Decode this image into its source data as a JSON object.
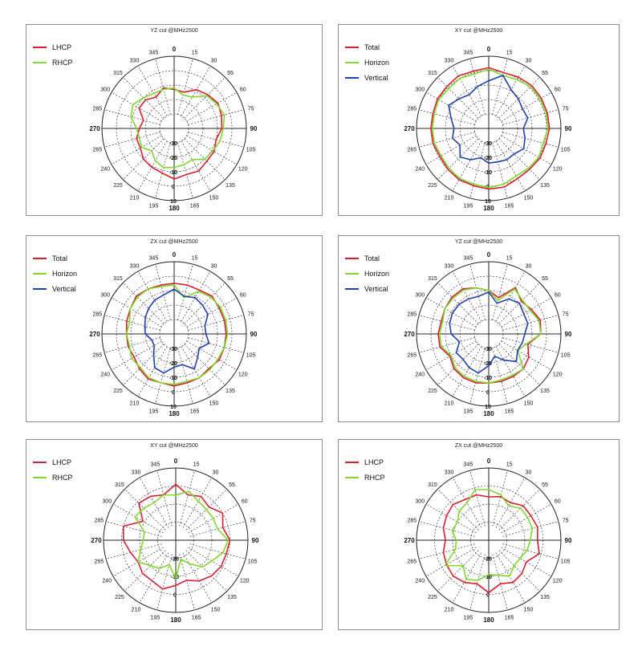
{
  "colors": {
    "red": "#d81e2f",
    "green": "#7fd92a",
    "blue": "#1f3fae"
  },
  "chart_data": [
    {
      "type": "polar",
      "title": "YZ cut @MHz2500",
      "theta_labels": [
        "0",
        "15",
        "30",
        "55",
        "60",
        "75",
        "90",
        "105",
        "120",
        "135",
        "150",
        "165",
        "180",
        "195",
        "210",
        "225",
        "240",
        "265",
        "270",
        "285",
        "300",
        "315",
        "330",
        "345"
      ],
      "r_labels": [
        "-30",
        "-20",
        "-10",
        "0",
        "10"
      ],
      "rlim": [
        -40,
        10
      ],
      "series": [
        {
          "name": "LHCP",
          "color": "red",
          "values": [
            -13,
            -14,
            -9,
            -7,
            -5,
            -6,
            -7,
            -10,
            -8,
            -8,
            -6,
            -7,
            -5,
            -8,
            -9,
            -10,
            -13,
            -13,
            -16,
            -18,
            -12,
            -12,
            -15,
            -11
          ]
        },
        {
          "name": "RHCP",
          "color": "green",
          "values": [
            -12,
            -16,
            -15,
            -8,
            -6,
            -4,
            -6,
            -7,
            -9,
            -10,
            -15,
            -14,
            -13,
            -12,
            -14,
            -18,
            -14,
            -15,
            -14,
            -9,
            -7,
            -10,
            -12,
            -12
          ]
        }
      ]
    },
    {
      "type": "polar",
      "title": "XY cut @MHz2500",
      "theta_labels": [
        "0",
        "15",
        "30",
        "55",
        "60",
        "75",
        "90",
        "105",
        "120",
        "135",
        "150",
        "165",
        "180",
        "195",
        "210",
        "225",
        "240",
        "265",
        "270",
        "285",
        "300",
        "315",
        "330",
        "345"
      ],
      "r_labels": [
        "-30",
        "-20",
        "-10",
        "0",
        "10"
      ],
      "rlim": [
        -40,
        10
      ],
      "series": [
        {
          "name": "Total",
          "color": "red",
          "values": [
            2,
            0,
            1,
            2,
            2,
            2,
            2,
            1,
            1,
            0,
            0,
            2,
            2,
            1,
            1,
            0,
            -1,
            0,
            0,
            0,
            1,
            1,
            2,
            1
          ]
        },
        {
          "name": "Horizon",
          "color": "green",
          "values": [
            1,
            -2,
            -1,
            1,
            1,
            1,
            1,
            -1,
            0,
            -1,
            -2,
            0,
            1,
            0,
            0,
            -1,
            -2,
            -1,
            -1,
            -1,
            0,
            -1,
            0,
            -1
          ]
        },
        {
          "name": "Vertical",
          "color": "blue",
          "values": [
            -7,
            -2,
            -9,
            -11,
            -13,
            -12,
            -16,
            -14,
            -12,
            -15,
            -15,
            -16,
            -16,
            -19,
            -15,
            -12,
            -17,
            -14,
            -16,
            -13,
            -8,
            -11,
            -13,
            -10
          ]
        }
      ]
    },
    {
      "type": "polar",
      "title": "ZX cut @MHz2500",
      "theta_labels": [
        "0",
        "15",
        "30",
        "55",
        "60",
        "75",
        "90",
        "105",
        "120",
        "135",
        "150",
        "165",
        "180",
        "195",
        "210",
        "225",
        "240",
        "265",
        "270",
        "285",
        "300",
        "315",
        "330",
        "345"
      ],
      "r_labels": [
        "-30",
        "-20",
        "-10",
        "0",
        "10"
      ],
      "rlim": [
        -40,
        10
      ],
      "series": [
        {
          "name": "Total",
          "color": "red",
          "values": [
            -5,
            -5,
            -5,
            -3,
            -4,
            -4,
            -4,
            -4,
            -4,
            -6,
            -5,
            -5,
            -4,
            -5,
            -4,
            -6,
            -8,
            -7,
            -7,
            -6,
            -5,
            -3,
            -4,
            -5
          ]
        },
        {
          "name": "Horizon",
          "color": "green",
          "values": [
            -6,
            -14,
            -6,
            -4,
            -3,
            -3,
            -3,
            -4,
            -5,
            -5,
            -5,
            -6,
            -5,
            -5,
            -5,
            -7,
            -6,
            -8,
            -7,
            -8,
            -5,
            -4,
            -4,
            -6
          ]
        },
        {
          "name": "Vertical",
          "color": "blue",
          "values": [
            -9,
            -13,
            -11,
            -12,
            -13,
            -18,
            -18,
            -15,
            -20,
            -17,
            -12,
            -18,
            -17,
            -12,
            -13,
            -20,
            -24,
            -24,
            -20,
            -19,
            -17,
            -15,
            -13,
            -12
          ]
        }
      ]
    },
    {
      "type": "polar",
      "title": "YZ cut @MHz2500",
      "theta_labels": [
        "0",
        "15",
        "30",
        "55",
        "60",
        "75",
        "90",
        "105",
        "120",
        "135",
        "150",
        "165",
        "180",
        "195",
        "210",
        "225",
        "240",
        "265",
        "270",
        "285",
        "300",
        "315",
        "330",
        "345"
      ],
      "r_labels": [
        "-30",
        "-20",
        "-10",
        "0",
        "10"
      ],
      "rlim": [
        -40,
        10
      ],
      "series": [
        {
          "name": "Total",
          "color": "red",
          "values": [
            -10,
            -14,
            -3,
            -8,
            -6,
            -3,
            -4,
            -12,
            -8,
            -6,
            -6,
            -6,
            -6,
            -5,
            -5,
            -6,
            -9,
            -5,
            -5,
            -6,
            -5,
            -4,
            -4,
            -7
          ]
        },
        {
          "name": "Horizon",
          "color": "green",
          "values": [
            -10,
            -16,
            -4,
            -7,
            -7,
            -4,
            -4,
            -13,
            -17,
            -6,
            -7,
            -7,
            -6,
            -6,
            -6,
            -7,
            -10,
            -6,
            -6,
            -7,
            -5,
            -5,
            -5,
            -7
          ]
        },
        {
          "name": "Vertical",
          "color": "blue",
          "values": [
            -11,
            -18,
            -12,
            -10,
            -12,
            -12,
            -15,
            -16,
            -17,
            -13,
            -19,
            -24,
            -18,
            -12,
            -13,
            -15,
            -14,
            -19,
            -14,
            -12,
            -11,
            -11,
            -12,
            -13
          ]
        }
      ]
    },
    {
      "type": "polar",
      "title": "XY cut @MHz2500",
      "theta_labels": [
        "0",
        "15",
        "30",
        "55",
        "60",
        "75",
        "90",
        "105",
        "120",
        "135",
        "150",
        "165",
        "180",
        "195",
        "210",
        "225",
        "240",
        "265",
        "270",
        "285",
        "300",
        "315",
        "330",
        "345"
      ],
      "r_labels": [
        "-20",
        "-10",
        "0"
      ],
      "rlim": [
        -30,
        10
      ],
      "series": [
        {
          "name": "LHCP",
          "color": "red",
          "values": [
            1,
            -4,
            -2,
            -4,
            0,
            -3,
            0,
            -1,
            -1,
            -2,
            -4,
            -7,
            -5,
            -2,
            -4,
            -4,
            -6,
            -4,
            -1,
            0,
            -9,
            -1,
            -2,
            -4
          ]
        },
        {
          "name": "RHCP",
          "color": "green",
          "values": [
            -5,
            -2,
            -5,
            -6,
            -6,
            -6,
            -1,
            -3,
            -7,
            -9,
            -15,
            -19,
            -9,
            -16,
            -12,
            -10,
            -6,
            -10,
            -12,
            -12,
            -4,
            -5,
            -6,
            -4
          ]
        }
      ]
    },
    {
      "type": "polar",
      "title": "ZX cut @MHz2500",
      "theta_labels": [
        "0",
        "15",
        "30",
        "55",
        "60",
        "75",
        "90",
        "105",
        "120",
        "135",
        "150",
        "165",
        "180",
        "195",
        "210",
        "225",
        "240",
        "265",
        "270",
        "285",
        "300",
        "315",
        "330",
        "345"
      ],
      "r_labels": [
        "-20",
        "-10",
        "0"
      ],
      "rlim": [
        -30,
        10
      ],
      "series": [
        {
          "name": "LHCP",
          "color": "red",
          "values": [
            -6,
            -5,
            -6,
            -3,
            -3,
            -2,
            -3,
            -1,
            -6,
            -4,
            -3,
            -5,
            -1,
            -5,
            -3,
            -2,
            -3,
            -4,
            -6,
            -4,
            -3,
            -2,
            -4,
            -4
          ]
        },
        {
          "name": "RHCP",
          "color": "green",
          "values": [
            -2,
            -4,
            -8,
            -5,
            -5,
            -5,
            -7,
            -8,
            -10,
            -10,
            -7,
            -10,
            -11,
            -7,
            -5,
            -10,
            -2,
            -11,
            -12,
            -9,
            -10,
            -7,
            -6,
            -1
          ]
        }
      ]
    }
  ]
}
